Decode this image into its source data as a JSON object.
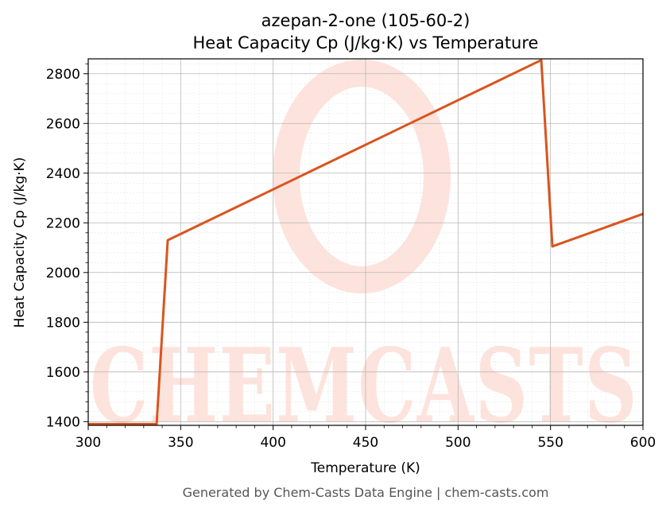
{
  "chart_data": {
    "type": "line",
    "title": "azepan-2-one (105-60-2)",
    "subtitle": "Heat Capacity Cp (J/kg·K) vs Temperature",
    "xlabel": "Temperature (K)",
    "ylabel": "Heat Capacity Cp (J/kg·K)",
    "xlim": [
      300,
      600
    ],
    "ylim": [
      1385,
      2860
    ],
    "x_ticks": [
      300,
      350,
      400,
      450,
      500,
      550,
      600
    ],
    "y_ticks": [
      1400,
      1600,
      1800,
      2000,
      2200,
      2400,
      2600,
      2800
    ],
    "grid": true,
    "series": [
      {
        "color": "#d9541e",
        "x": [
          300,
          337,
          343,
          545,
          551,
          600
        ],
        "y": [
          1390,
          1390,
          2130,
          2855,
          2105,
          2236
        ]
      }
    ]
  },
  "watermark": "CHEMCASTS",
  "footer": "Generated by Chem-Casts Data Engine | chem-casts.com"
}
